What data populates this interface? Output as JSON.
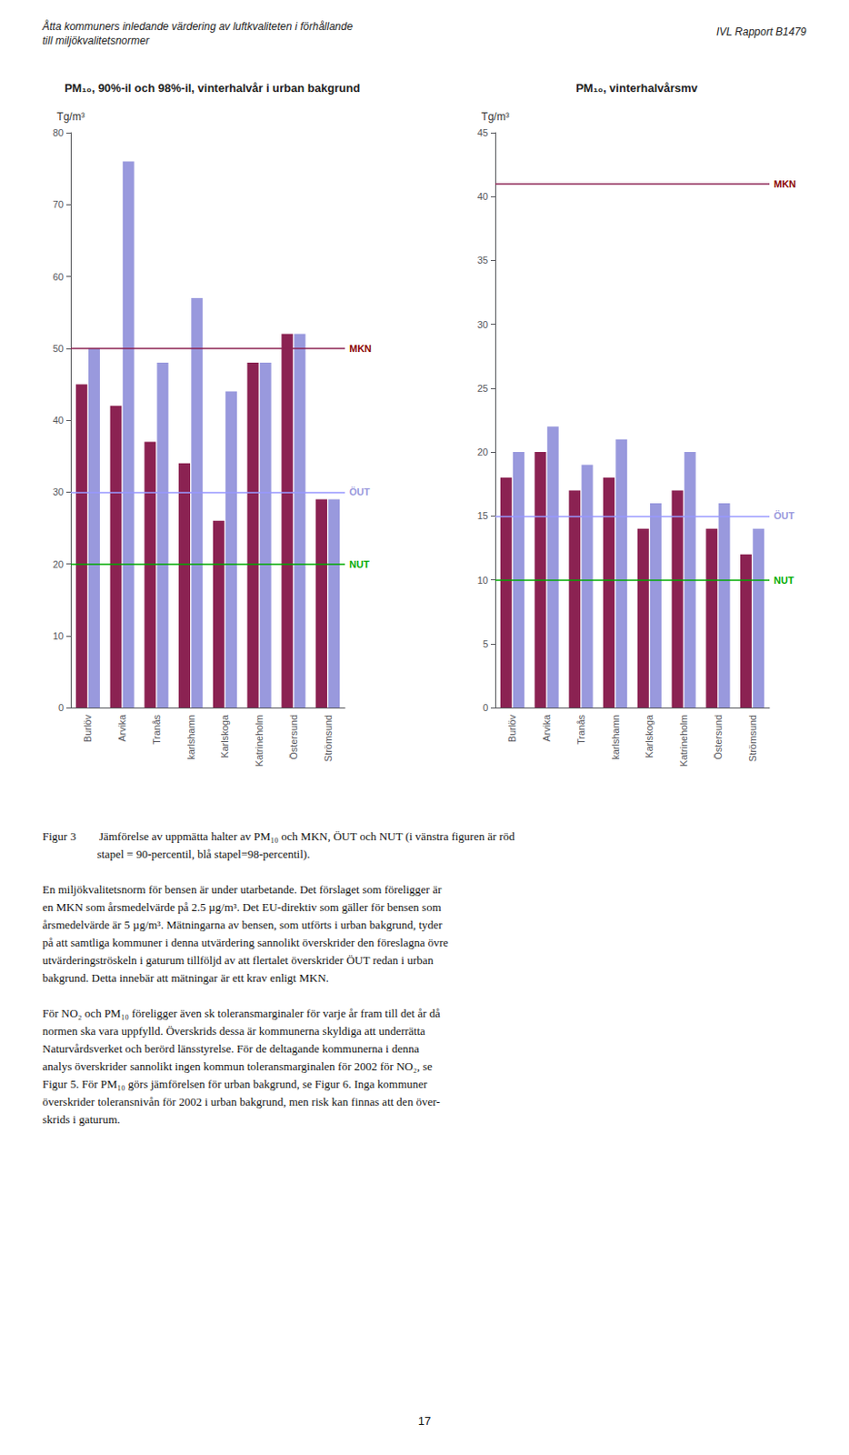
{
  "header": {
    "left": [
      "Åtta kommuners inledande värdering av luftkvaliteten i förhållande",
      "till miljökvalitetsnormer"
    ],
    "right": "IVL Rapport B1479"
  },
  "chart_data": [
    {
      "type": "bar",
      "title": "PM₁₀, 90%-il och 98%-il, vinterhalvår i urban bakgrund",
      "y_label": "Tg/m³",
      "categories": [
        "Burlöv",
        "Arvika",
        "Tranås",
        "karlshamn",
        "Karlskoga",
        "Katrineholm",
        "Östersund",
        "Strömsund"
      ],
      "series": [
        {
          "color": "#8B2252",
          "values": [
            45,
            42,
            37,
            34,
            26,
            48,
            52,
            29
          ]
        },
        {
          "color": "#9999DD",
          "values": [
            50,
            76,
            48,
            57,
            44,
            48,
            52,
            29
          ]
        }
      ],
      "ylim": [
        0,
        80
      ],
      "yticks": [
        0,
        10,
        20,
        30,
        40,
        50,
        60,
        70,
        80
      ],
      "grid": false,
      "annotations": [
        {
          "text": "MKN",
          "y": 50,
          "color": "darkred",
          "line_color": "#8B2252"
        },
        {
          "text": "ÖUT",
          "y": 30,
          "color": "#9999DD",
          "line_color": "#9999FF"
        },
        {
          "text": "NUT",
          "y": 20,
          "color": "#00AA00",
          "line_color": "#00AA00"
        }
      ]
    },
    {
      "type": "bar",
      "title": "PM₁₀, vinterhalvårsmv",
      "y_label": "Tg/m³",
      "categories": [
        "Burlöv",
        "Arvika",
        "Tranås",
        "karlshamn",
        "Karlskoga",
        "Katrineholm",
        "Östersund",
        "Strömsund"
      ],
      "series": [
        {
          "color": "#8B2252",
          "values": [
            18,
            20,
            17,
            18,
            14,
            17,
            14,
            12
          ]
        },
        {
          "color": "#9999DD",
          "values": [
            20,
            22,
            19,
            21,
            16,
            20,
            16,
            14
          ]
        }
      ],
      "ylim": [
        0,
        45
      ],
      "yticks": [
        0,
        5,
        10,
        15,
        20,
        25,
        30,
        35,
        40,
        45
      ],
      "grid": false,
      "annotations": [
        {
          "text": "MKN",
          "y": 41,
          "color": "darkred",
          "line_color": "#8B2252"
        },
        {
          "text": "ÖUT",
          "y": 15,
          "color": "#9999DD",
          "line_color": "#9999FF"
        },
        {
          "text": "NUT",
          "y": 10,
          "color": "#00AA00",
          "line_color": "#00AA00"
        }
      ]
    }
  ],
  "body_text": [
    [
      "Figur 3        Jämförelse av uppmätta halter av PM₁₀ och MKN, ÖUT och NUT (i vänstra figuren är röd",
      "                   stapel = 90-percentil, blå stapel=98-percentil)."
    ],
    [
      "En miljökvalitetsnorm för bensen är under utarbetande. Det förslaget som föreligger är",
      "en MKN som årsmedelvärde på 2.5 µg/m³. Det EU-direktiv som gäller för bensen som",
      "årsmedelvärde är 5 µg/m³. Mätningarna av bensen, som utförts i urban bakgrund, tyder",
      "på att samtliga kommuner i denna utvärdering sannolikt överskrider den föreslagna övre",
      "utvärderingströskeln i gaturum tillföljd av att flertalet överskrider ÖUT redan i urban",
      "bakgrund. Detta innebär att mätningar är ett krav enligt MKN."
    ],
    [
      "För NO₂ och PM₁₀ föreligger även sk toleransmarginaler för varje år fram till det år då",
      "normen ska vara uppfylld. Överskrids dessa är kommunerna skyldiga att underrätta",
      "Naturvårdsverket och berörd länsstyrelse. För de deltagande kommunerna i denna",
      "analys överskrider sannolikt ingen kommun toleransmarginalen för 2002 för NO₂, se",
      "Figur 5. För PM₁₀ görs jämförelsen för urban bakgrund, se Figur 6. Inga kommuner",
      "överskrider toleransnivån för 2002 i urban bakgrund, men risk kan finnas att den över-",
      "skrids i gaturum."
    ]
  ],
  "page_number": "17"
}
